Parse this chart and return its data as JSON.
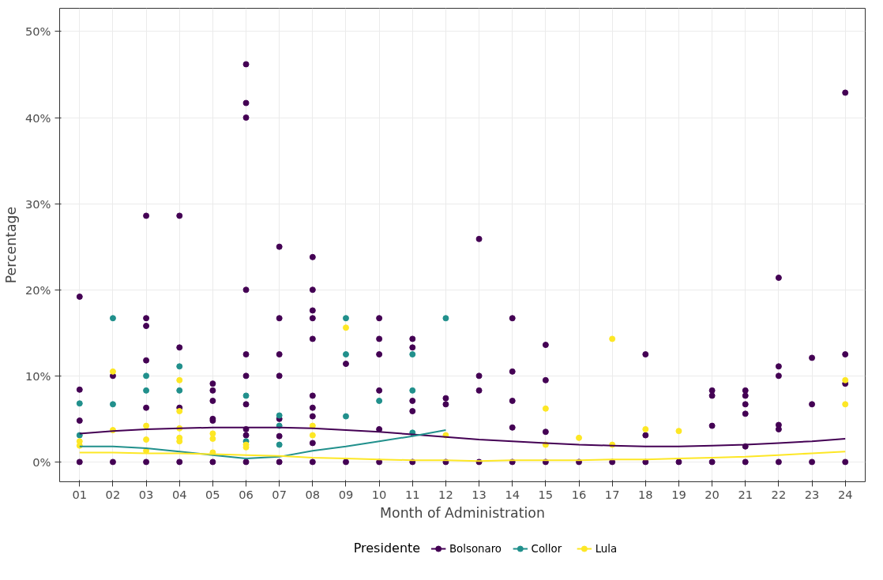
{
  "chart_data": {
    "type": "scatter",
    "xlabel": "Month of Administration",
    "ylabel": "Percentage",
    "legend_title": "Presidente",
    "legend": "bottom",
    "grid": true,
    "marker": "circle",
    "categories": [
      "01",
      "02",
      "03",
      "04",
      "05",
      "06",
      "07",
      "08",
      "09",
      "10",
      "11",
      "12",
      "13",
      "14",
      "15",
      "16",
      "17",
      "18",
      "19",
      "20",
      "21",
      "22",
      "23",
      "24"
    ],
    "ylim": [
      -2.3,
      52.7
    ],
    "yticks": [
      {
        "value": 0,
        "label": "0%"
      },
      {
        "value": 10,
        "label": "10%"
      },
      {
        "value": 20,
        "label": "20%"
      },
      {
        "value": 30,
        "label": "30%"
      },
      {
        "value": 40,
        "label": "40%"
      },
      {
        "value": 50,
        "label": "50%"
      }
    ],
    "series": [
      {
        "name": "Bolsonaro",
        "color": "#440154",
        "x": [
          "01",
          "01",
          "01",
          "01",
          "02",
          "02",
          "03",
          "03",
          "03",
          "03",
          "03",
          "03",
          "04",
          "04",
          "04",
          "04",
          "05",
          "05",
          "05",
          "05",
          "05",
          "05",
          "06",
          "06",
          "06",
          "06",
          "06",
          "06",
          "06",
          "06",
          "06",
          "06",
          "07",
          "07",
          "07",
          "07",
          "07",
          "07",
          "07",
          "08",
          "08",
          "08",
          "08",
          "08",
          "08",
          "08",
          "08",
          "08",
          "08",
          "09",
          "09",
          "10",
          "10",
          "10",
          "10",
          "10",
          "10",
          "11",
          "11",
          "11",
          "11",
          "11",
          "12",
          "12",
          "12",
          "13",
          "13",
          "13",
          "13",
          "14",
          "14",
          "14",
          "14",
          "14",
          "15",
          "15",
          "15",
          "15",
          "16",
          "17",
          "18",
          "18",
          "18",
          "19",
          "20",
          "20",
          "20",
          "20",
          "21",
          "21",
          "21",
          "21",
          "21",
          "21",
          "22",
          "22",
          "22",
          "22",
          "22",
          "22",
          "23",
          "23",
          "23",
          "24",
          "24",
          "24",
          "24"
        ],
        "values": [
          19.2,
          8.4,
          4.8,
          0,
          10.0,
          0,
          28.6,
          16.7,
          15.8,
          11.8,
          6.3,
          0,
          28.6,
          13.3,
          6.3,
          0,
          9.1,
          8.3,
          7.1,
          5.0,
          4.8,
          0,
          46.2,
          41.7,
          40.0,
          20.0,
          12.5,
          10.0,
          6.7,
          3.8,
          3.1,
          0,
          25.0,
          16.7,
          12.5,
          10.0,
          5.0,
          3.0,
          0,
          23.8,
          20.0,
          17.6,
          16.7,
          14.3,
          7.7,
          6.3,
          5.3,
          2.2,
          0,
          11.4,
          0,
          16.7,
          14.3,
          12.5,
          8.3,
          3.8,
          0,
          14.3,
          13.3,
          7.1,
          5.9,
          0,
          7.4,
          6.7,
          0,
          25.9,
          10.0,
          8.3,
          0,
          16.7,
          10.5,
          7.1,
          4.0,
          0,
          13.6,
          9.5,
          3.5,
          0,
          0,
          0,
          12.5,
          3.1,
          0,
          0,
          8.3,
          7.7,
          4.2,
          0,
          8.3,
          7.7,
          6.7,
          5.6,
          1.8,
          0,
          21.4,
          11.1,
          10.0,
          4.3,
          3.8,
          0,
          12.1,
          6.7,
          0,
          42.9,
          12.5,
          9.1,
          0
        ]
      },
      {
        "name": "Collor",
        "color": "#21908c",
        "x": [
          "01",
          "01",
          "02",
          "02",
          "03",
          "03",
          "04",
          "04",
          "06",
          "06",
          "07",
          "07",
          "07",
          "09",
          "09",
          "09",
          "10",
          "11",
          "11",
          "11",
          "12"
        ],
        "values": [
          6.8,
          3.1,
          16.7,
          6.7,
          10.0,
          8.3,
          11.1,
          8.3,
          7.7,
          2.4,
          5.4,
          4.2,
          2.0,
          16.7,
          12.5,
          5.3,
          7.1,
          12.5,
          8.3,
          3.4,
          16.7
        ]
      },
      {
        "name": "Lula",
        "color": "#fde725",
        "x": [
          "01",
          "01",
          "02",
          "02",
          "03",
          "03",
          "03",
          "04",
          "04",
          "04",
          "04",
          "04",
          "05",
          "05",
          "05",
          "06",
          "06",
          "08",
          "08",
          "09",
          "12",
          "15",
          "15",
          "16",
          "17",
          "17",
          "18",
          "19",
          "24",
          "24"
        ],
        "values": [
          2.4,
          1.9,
          10.5,
          3.7,
          4.2,
          2.6,
          1.3,
          9.5,
          5.9,
          3.9,
          2.8,
          2.4,
          3.3,
          2.7,
          1.1,
          2.0,
          1.7,
          4.2,
          3.1,
          15.6,
          3.1,
          6.2,
          2.0,
          2.8,
          14.3,
          2.0,
          3.8,
          3.6,
          9.5,
          6.7
        ]
      },
      {
        "type": "line",
        "marker": "none",
        "color": "#440154",
        "x": [
          "01",
          "02",
          "03",
          "04",
          "05",
          "06",
          "07",
          "08",
          "09",
          "10",
          "11",
          "12",
          "13",
          "14",
          "15",
          "16",
          "17",
          "18",
          "19",
          "20",
          "21",
          "22",
          "23",
          "24"
        ],
        "values": [
          3.3,
          3.6,
          3.8,
          3.9,
          4.0,
          4.0,
          4.0,
          3.9,
          3.7,
          3.5,
          3.2,
          2.9,
          2.6,
          2.4,
          2.2,
          2.0,
          1.9,
          1.8,
          1.8,
          1.9,
          2.0,
          2.2,
          2.4,
          2.7
        ]
      },
      {
        "type": "line",
        "marker": "none",
        "color": "#21908c",
        "x": [
          "01",
          "02",
          "03",
          "04",
          "05",
          "06",
          "07",
          "08",
          "09",
          "10",
          "11",
          "12"
        ],
        "values": [
          1.8,
          1.8,
          1.6,
          1.2,
          0.8,
          0.4,
          0.6,
          1.3,
          1.8,
          2.4,
          3.0,
          3.7
        ]
      },
      {
        "type": "line",
        "marker": "none",
        "color": "#fde725",
        "x": [
          "01",
          "02",
          "03",
          "04",
          "05",
          "06",
          "07",
          "08",
          "09",
          "10",
          "11",
          "12",
          "13",
          "14",
          "15",
          "16",
          "17",
          "18",
          "19",
          "20",
          "21",
          "22",
          "23",
          "24"
        ],
        "values": [
          1.1,
          1.1,
          1.0,
          1.0,
          0.9,
          0.8,
          0.7,
          0.5,
          0.4,
          0.3,
          0.2,
          0.2,
          0.1,
          0.2,
          0.2,
          0.2,
          0.3,
          0.3,
          0.4,
          0.5,
          0.6,
          0.8,
          1.0,
          1.2
        ]
      }
    ]
  }
}
